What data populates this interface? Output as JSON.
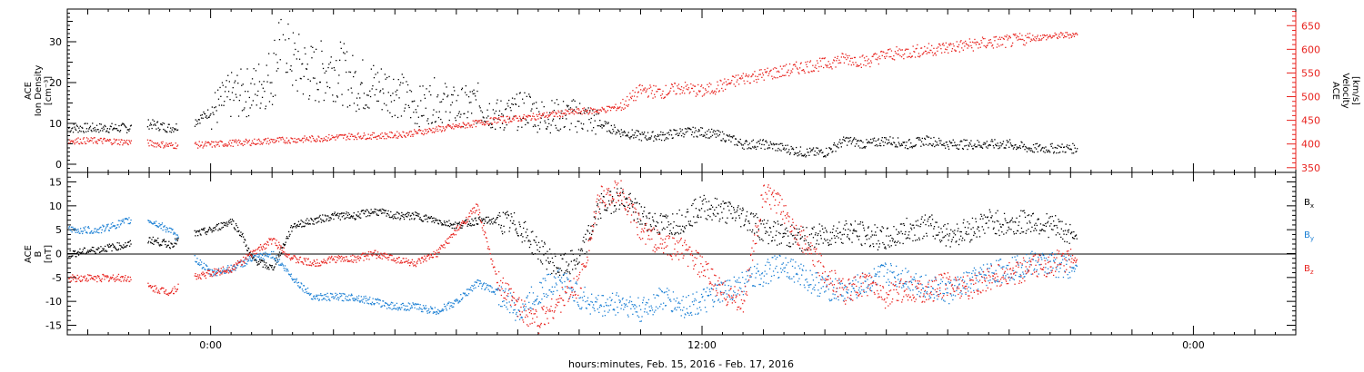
{
  "colors": {
    "black": "#000000",
    "red": "#e8231f",
    "blue": "#1a7fd4"
  },
  "xaxis": {
    "label": "hours:minutes, Feb. 15, 2016 - Feb. 17, 2016",
    "range_hours": [
      -7,
      53
    ],
    "major_ticks": [
      {
        "hour": 0,
        "label": "0:00"
      },
      {
        "hour": 24,
        "label": "12:00"
      },
      {
        "hour": 48,
        "label": "0:00"
      }
    ]
  },
  "chart_data": [
    {
      "type": "scatter",
      "panel": "top",
      "ylabel_left": [
        "ACE",
        "Ion Density",
        "[cm⁻³]"
      ],
      "ylabel_right": [
        "ACE",
        "Velocity",
        "[km/s]"
      ],
      "ylim_left": [
        -2,
        38
      ],
      "ylim_right": [
        340,
        685
      ],
      "yticks_left": [
        "0",
        "10",
        "20",
        "30"
      ],
      "yticks_right": [
        "350",
        "400",
        "450",
        "500",
        "550",
        "600",
        "650"
      ],
      "series": [
        {
          "axis": "left",
          "color": "black",
          "points": [
            [
              -7,
              9
            ],
            [
              -5.5,
              9
            ],
            [
              -4,
              9
            ],
            [
              -3,
              10
            ],
            [
              -2,
              9
            ],
            [
              -1,
              10
            ],
            [
              0,
              13
            ],
            [
              1,
              17
            ],
            [
              2,
              18
            ],
            [
              3,
              22
            ],
            [
              3.5,
              35
            ],
            [
              4,
              25
            ],
            [
              5,
              22
            ],
            [
              6,
              24
            ],
            [
              7,
              20
            ],
            [
              8,
              19
            ],
            [
              9,
              18
            ],
            [
              10,
              14
            ],
            [
              11,
              16
            ],
            [
              12,
              14
            ],
            [
              13,
              15
            ],
            [
              14,
              12
            ],
            [
              15,
              13
            ],
            [
              15.5,
              14
            ],
            [
              16,
              12
            ],
            [
              17,
              12
            ],
            [
              18,
              12
            ],
            [
              19,
              10
            ],
            [
              20,
              8
            ],
            [
              21,
              7
            ],
            [
              22,
              7
            ],
            [
              23,
              8
            ],
            [
              24,
              8
            ],
            [
              25,
              7
            ],
            [
              26,
              5
            ],
            [
              27,
              5
            ],
            [
              28,
              4
            ],
            [
              29,
              3
            ],
            [
              30,
              3
            ],
            [
              31,
              6
            ],
            [
              32,
              5
            ],
            [
              33,
              6
            ],
            [
              34,
              5
            ],
            [
              35,
              6
            ],
            [
              36,
              5
            ],
            [
              37,
              5
            ],
            [
              38,
              5
            ],
            [
              39,
              5
            ],
            [
              40,
              4
            ],
            [
              41,
              4
            ],
            [
              42,
              4
            ]
          ]
        },
        {
          "axis": "right",
          "color": "red",
          "points": [
            [
              -7,
              408
            ],
            [
              -5.5,
              408
            ],
            [
              -4,
              405
            ],
            [
              -3,
              403
            ],
            [
              -2,
              398
            ],
            [
              0,
              400
            ],
            [
              1,
              403
            ],
            [
              2,
              405
            ],
            [
              3,
              408
            ],
            [
              4,
              410
            ],
            [
              5,
              412
            ],
            [
              6,
              415
            ],
            [
              7,
              418
            ],
            [
              8,
              418
            ],
            [
              9,
              420
            ],
            [
              10,
              425
            ],
            [
              11,
              432
            ],
            [
              12,
              438
            ],
            [
              13,
              445
            ],
            [
              14,
              452
            ],
            [
              15,
              455
            ],
            [
              16,
              460
            ],
            [
              17,
              465
            ],
            [
              18,
              470
            ],
            [
              19,
              472
            ],
            [
              20,
              480
            ],
            [
              21,
              515
            ],
            [
              22,
              510
            ],
            [
              23,
              520
            ],
            [
              24,
              512
            ],
            [
              25,
              525
            ],
            [
              26,
              540
            ],
            [
              27,
              548
            ],
            [
              28,
              555
            ],
            [
              29,
              565
            ],
            [
              30,
              570
            ],
            [
              31,
              582
            ],
            [
              32,
              575
            ],
            [
              33,
              590
            ],
            [
              34,
              595
            ],
            [
              35,
              600
            ],
            [
              36,
              605
            ],
            [
              37,
              610
            ],
            [
              38,
              615
            ],
            [
              39,
              618
            ],
            [
              40,
              625
            ],
            [
              41,
              628
            ],
            [
              42,
              632
            ]
          ]
        }
      ]
    },
    {
      "type": "scatter",
      "panel": "bottom",
      "ylabel_left": [
        "ACE",
        "B",
        "[nT]"
      ],
      "ylim": [
        -17,
        17
      ],
      "yticks": [
        "-15",
        "-10",
        "-5",
        "0",
        "5",
        "10",
        "15"
      ],
      "legend": [
        {
          "label": "B",
          "sub": "x",
          "color": "black"
        },
        {
          "label": "B",
          "sub": "y",
          "color": "blue"
        },
        {
          "label": "B",
          "sub": "z",
          "color": "red"
        }
      ],
      "series": [
        {
          "name": "Bx",
          "color": "black",
          "points": [
            [
              -7,
              0
            ],
            [
              -5.5,
              1
            ],
            [
              -4,
              2
            ],
            [
              -3,
              3
            ],
            [
              -2,
              2
            ],
            [
              -1,
              4
            ],
            [
              0,
              5
            ],
            [
              1,
              7
            ],
            [
              1.5,
              4
            ],
            [
              2,
              -1
            ],
            [
              3,
              -3
            ],
            [
              4,
              6
            ],
            [
              5,
              7
            ],
            [
              6,
              8
            ],
            [
              7,
              8
            ],
            [
              8,
              9
            ],
            [
              9,
              8
            ],
            [
              10,
              8
            ],
            [
              11,
              7
            ],
            [
              12,
              6
            ],
            [
              13,
              7
            ],
            [
              14,
              7
            ],
            [
              15,
              6
            ],
            [
              16,
              1
            ],
            [
              17,
              -3
            ],
            [
              18,
              -1
            ],
            [
              19,
              10
            ],
            [
              20,
              12
            ],
            [
              21,
              8
            ],
            [
              22,
              6
            ],
            [
              23,
              7
            ],
            [
              24,
              10
            ],
            [
              25,
              9
            ],
            [
              26,
              8
            ],
            [
              27,
              5
            ],
            [
              28,
              4
            ],
            [
              29,
              3
            ],
            [
              30,
              4
            ],
            [
              31,
              5
            ],
            [
              32,
              4
            ],
            [
              33,
              3
            ],
            [
              34,
              5
            ],
            [
              35,
              6
            ],
            [
              36,
              4
            ],
            [
              37,
              5
            ],
            [
              38,
              7
            ],
            [
              39,
              6
            ],
            [
              40,
              7
            ],
            [
              41,
              6
            ],
            [
              42,
              4
            ]
          ]
        },
        {
          "name": "By",
          "color": "blue",
          "points": [
            [
              -7,
              5
            ],
            [
              -5.5,
              5
            ],
            [
              -4,
              7
            ],
            [
              -3,
              7
            ],
            [
              -2,
              5
            ],
            [
              -1,
              0
            ],
            [
              0,
              -4
            ],
            [
              1,
              -3
            ],
            [
              2,
              -1
            ],
            [
              3,
              0
            ],
            [
              4,
              -5
            ],
            [
              5,
              -9
            ],
            [
              6,
              -9
            ],
            [
              7,
              -9
            ],
            [
              8,
              -10
            ],
            [
              9,
              -11
            ],
            [
              10,
              -11
            ],
            [
              11,
              -12
            ],
            [
              12,
              -10
            ],
            [
              13,
              -6
            ],
            [
              14,
              -8
            ],
            [
              15,
              -12
            ],
            [
              16,
              -8
            ],
            [
              17,
              -5
            ],
            [
              18,
              -9
            ],
            [
              19,
              -11
            ],
            [
              20,
              -10
            ],
            [
              21,
              -12
            ],
            [
              22,
              -9
            ],
            [
              23,
              -11
            ],
            [
              24,
              -10
            ],
            [
              25,
              -8
            ],
            [
              26,
              -6
            ],
            [
              27,
              -4
            ],
            [
              28,
              -2
            ],
            [
              29,
              -5
            ],
            [
              30,
              -7
            ],
            [
              31,
              -8
            ],
            [
              32,
              -6
            ],
            [
              33,
              -4
            ],
            [
              34,
              -5
            ],
            [
              35,
              -7
            ],
            [
              36,
              -8
            ],
            [
              37,
              -6
            ],
            [
              38,
              -4
            ],
            [
              39,
              -3
            ],
            [
              40,
              -2
            ],
            [
              41,
              -2
            ],
            [
              42,
              -3
            ]
          ]
        },
        {
          "name": "Bz",
          "color": "red",
          "points": [
            [
              -7,
              -5
            ],
            [
              -5.5,
              -5
            ],
            [
              -4,
              -5
            ],
            [
              -3,
              -7
            ],
            [
              -2,
              -8
            ],
            [
              -1,
              -5
            ],
            [
              0,
              -4
            ],
            [
              1,
              -3
            ],
            [
              2,
              0
            ],
            [
              3,
              3
            ],
            [
              4,
              -1
            ],
            [
              5,
              -2
            ],
            [
              6,
              -1
            ],
            [
              7,
              -1
            ],
            [
              8,
              0
            ],
            [
              9,
              -1
            ],
            [
              10,
              -2
            ],
            [
              11,
              0
            ],
            [
              12,
              5
            ],
            [
              13,
              10
            ],
            [
              14,
              -6
            ],
            [
              15,
              -11
            ],
            [
              16,
              -14
            ],
            [
              17,
              -10
            ],
            [
              18,
              -6
            ],
            [
              19,
              12
            ],
            [
              20,
              13
            ],
            [
              21,
              5
            ],
            [
              22,
              2
            ],
            [
              23,
              1
            ],
            [
              24,
              -3
            ],
            [
              25,
              -8
            ],
            [
              26,
              -10
            ],
            [
              27,
              13
            ],
            [
              28,
              9
            ],
            [
              29,
              2
            ],
            [
              30,
              -4
            ],
            [
              31,
              -8
            ],
            [
              32,
              -6
            ],
            [
              33,
              -9
            ],
            [
              34,
              -7
            ],
            [
              35,
              -8
            ],
            [
              36,
              -6
            ],
            [
              37,
              -7
            ],
            [
              38,
              -5
            ],
            [
              39,
              -4
            ],
            [
              40,
              -3
            ],
            [
              41,
              -2
            ],
            [
              42,
              -1
            ]
          ]
        }
      ]
    }
  ]
}
